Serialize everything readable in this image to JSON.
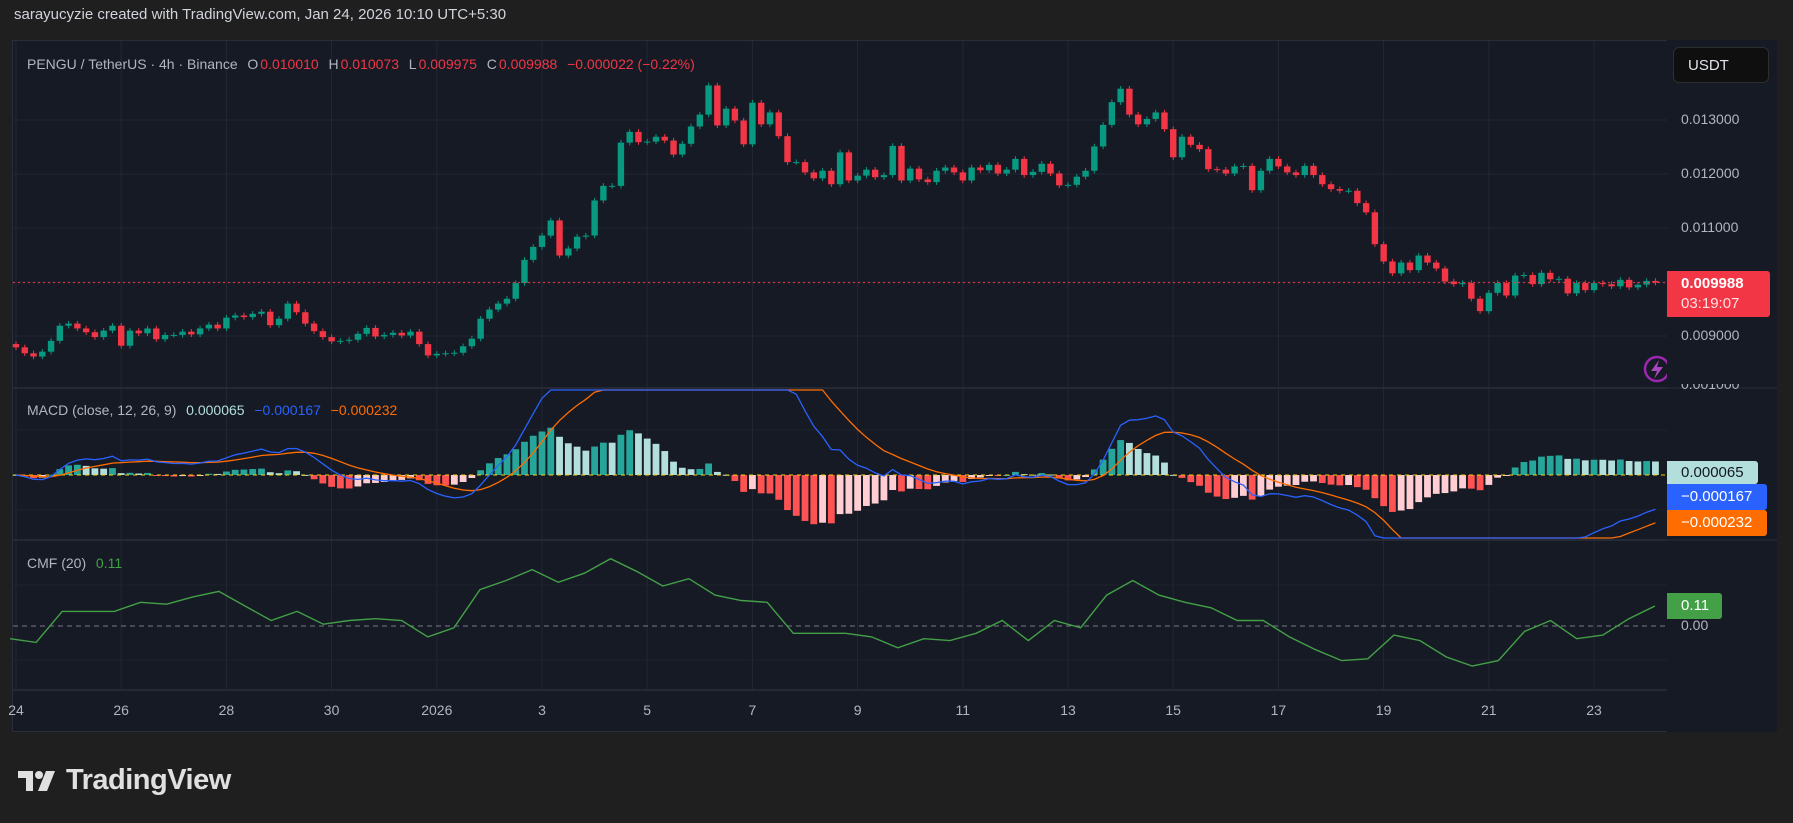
{
  "credit": "sarayucyzie created with TradingView.com, Jan 24, 2026 10:10 UTC+5:30",
  "legend": {
    "symbol": "PENGU / TetherUS · 4h · Binance",
    "o_label": "O",
    "o": "0.010010",
    "h_label": "H",
    "h": "0.010073",
    "l_label": "L",
    "l": "0.009975",
    "c_label": "C",
    "c": "0.009988",
    "change": "−0.000022 (−0.22%)"
  },
  "currency_button": "USDT",
  "price_axis": {
    "labels": [
      {
        "text": "0.013000",
        "value": 0.013
      },
      {
        "text": "0.012000",
        "value": 0.012
      },
      {
        "text": "0.011000",
        "value": 0.011
      },
      {
        "text": "0.009000",
        "value": 0.009
      }
    ],
    "clipped_label": "0.001000",
    "last_price": "0.009988",
    "countdown": "03:19:07"
  },
  "macd": {
    "title": "MACD (close, 12, 26, 9)",
    "histogram": "0.000065",
    "macd": "−0.000167",
    "signal": "−0.000232"
  },
  "cmf": {
    "title": "CMF (20)",
    "value": "0.11",
    "zero_label": "0.00"
  },
  "time_axis": [
    "24",
    "26",
    "28",
    "30",
    "2026",
    "3",
    "5",
    "7",
    "9",
    "11",
    "13",
    "15",
    "17",
    "19",
    "21",
    "23"
  ],
  "colors": {
    "up": "#089981",
    "down": "#f23645",
    "macd_line": "#2962ff",
    "signal_line": "#ff6d00",
    "hist_up_strong": "#26a69a",
    "hist_up_weak": "#b2dfdb",
    "hist_down_strong": "#ff5252",
    "hist_down_weak": "#ffcdd2",
    "cmf_line": "#43a047",
    "background": "#161a25"
  },
  "icons": {
    "alert": "lightning-icon",
    "logo": "tradingview-logo"
  },
  "brand": "TradingView",
  "chart_data": {
    "type": "candlestick",
    "timeframe": "4h",
    "first_open": 0.00885,
    "last_close": 0.009988,
    "closes": [
      0.00879,
      0.00868,
      0.00862,
      0.00871,
      0.00891,
      0.00919,
      0.00923,
      0.00914,
      0.00907,
      0.00898,
      0.0091,
      0.00919,
      0.00882,
      0.0091,
      0.00905,
      0.00914,
      0.00894,
      0.00902,
      0.00902,
      0.00908,
      0.00903,
      0.00914,
      0.00921,
      0.00914,
      0.00934,
      0.00938,
      0.00935,
      0.00941,
      0.00945,
      0.0092,
      0.00932,
      0.0096,
      0.00944,
      0.00923,
      0.00909,
      0.00898,
      0.0089,
      0.00891,
      0.00893,
      0.00904,
      0.00915,
      0.00899,
      0.00902,
      0.00906,
      0.00901,
      0.00908,
      0.00885,
      0.00864,
      0.00867,
      0.00868,
      0.00869,
      0.00881,
      0.00895,
      0.00932,
      0.00949,
      0.0096,
      0.00969,
      0.00998,
      0.01041,
      0.01065,
      0.01086,
      0.01114,
      0.01049,
      0.01062,
      0.01084,
      0.01086,
      0.01151,
      0.01178,
      0.01178,
      0.01258,
      0.01278,
      0.01259,
      0.0126,
      0.01269,
      0.01262,
      0.01236,
      0.01256,
      0.01288,
      0.0131,
      0.01364,
      0.0129,
      0.01321,
      0.01299,
      0.01255,
      0.01332,
      0.01292,
      0.01314,
      0.0127,
      0.01222,
      0.01222,
      0.01203,
      0.01192,
      0.01206,
      0.01181,
      0.0124,
      0.01188,
      0.01197,
      0.01208,
      0.01194,
      0.01198,
      0.01252,
      0.01188,
      0.0121,
      0.0119,
      0.01185,
      0.01206,
      0.01212,
      0.01203,
      0.01188,
      0.01212,
      0.01207,
      0.01217,
      0.01201,
      0.01208,
      0.01228,
      0.01198,
      0.01204,
      0.01219,
      0.01201,
      0.01179,
      0.0118,
      0.01195,
      0.01206,
      0.01251,
      0.01291,
      0.01333,
      0.01358,
      0.0131,
      0.01292,
      0.01302,
      0.01314,
      0.01283,
      0.01231,
      0.01269,
      0.01254,
      0.01246,
      0.01209,
      0.01208,
      0.01201,
      0.01214,
      0.01215,
      0.0117,
      0.01206,
      0.01228,
      0.01214,
      0.01203,
      0.01198,
      0.01215,
      0.01198,
      0.01181,
      0.01172,
      0.01169,
      0.01169,
      0.01146,
      0.01129,
      0.0107,
      0.01038,
      0.01016,
      0.01036,
      0.01022,
      0.01049,
      0.01036,
      0.01025,
      0.01001,
      0.00996,
      0.00998,
      0.00969,
      0.00946,
      0.0098,
      0.00998,
      0.00975,
      0.01012,
      0.01013,
      0.00996,
      0.01017,
      0.01005,
      0.01006,
      0.00979,
      0.00998,
      0.00985,
      0.00998,
      0.00996,
      0.00992,
      0.01004,
      0.0099,
      0.00995,
      0.01002,
      0.009988
    ],
    "macd_params": {
      "source": "close",
      "fast": 12,
      "slow": 26,
      "signal": 9
    },
    "cmf_period": 20,
    "cmf_values": [
      -0.07,
      -0.09,
      0.08,
      0.08,
      0.08,
      0.13,
      0.12,
      0.16,
      0.19,
      0.11,
      0.03,
      0.08,
      0.01,
      0.03,
      0.04,
      0.03,
      -0.06,
      -0.01,
      0.2,
      0.25,
      0.31,
      0.24,
      0.29,
      0.37,
      0.3,
      0.22,
      0.26,
      0.17,
      0.14,
      0.13,
      -0.04,
      -0.04,
      -0.04,
      -0.06,
      -0.12,
      -0.07,
      -0.08,
      -0.04,
      0.03,
      -0.08,
      0.03,
      -0.01,
      0.17,
      0.25,
      0.17,
      0.13,
      0.1,
      0.03,
      0.03,
      -0.06,
      -0.13,
      -0.19,
      -0.18,
      -0.05,
      -0.08,
      -0.17,
      -0.22,
      -0.19,
      -0.03,
      0.03,
      -0.07,
      -0.05,
      0.04,
      0.11
    ],
    "price_range": [
      0.0083,
      0.0137
    ]
  }
}
